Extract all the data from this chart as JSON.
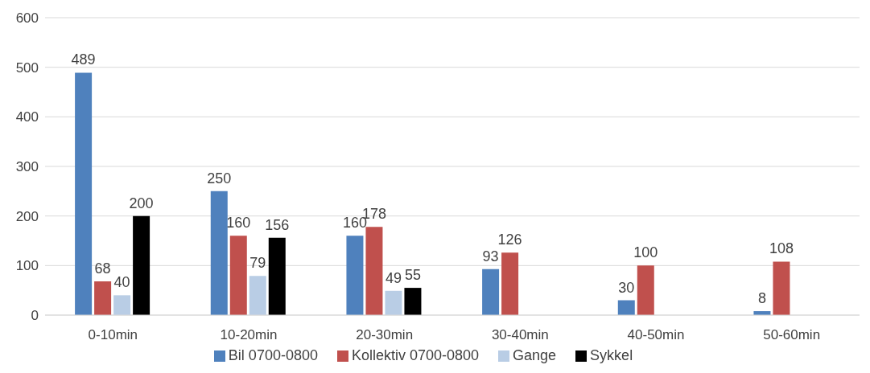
{
  "chart_data": {
    "type": "bar",
    "categories": [
      "0-10min",
      "10-20min",
      "20-30min",
      "30-40min",
      "40-50min",
      "50-60min"
    ],
    "series": [
      {
        "name": "Bil 0700-0800",
        "color": "#4f81bd",
        "values": [
          489,
          250,
          160,
          93,
          30,
          8
        ]
      },
      {
        "name": "Kollektiv 0700-0800",
        "color": "#c0504d",
        "values": [
          68,
          160,
          178,
          126,
          100,
          108
        ]
      },
      {
        "name": "Gange",
        "color": "#b9cde5",
        "values": [
          40,
          79,
          49,
          null,
          null,
          null
        ]
      },
      {
        "name": "Sykkel",
        "color": "#000000",
        "values": [
          200,
          156,
          55,
          null,
          null,
          null
        ]
      }
    ],
    "ylim": [
      0,
      600
    ],
    "yticks": [
      0,
      100,
      200,
      300,
      400,
      500,
      600
    ],
    "grid": "y",
    "legend": "bottom",
    "data_labels": true
  }
}
